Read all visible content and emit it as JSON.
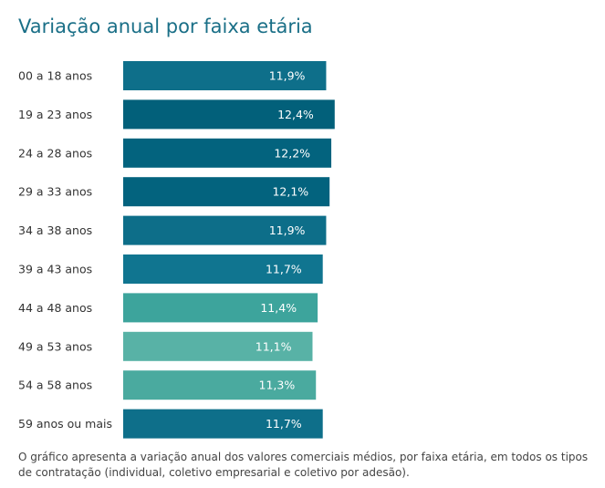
{
  "chart_data": {
    "type": "bar",
    "orientation": "horizontal",
    "title": "Variação anual por faixa etária",
    "categories": [
      "00 a 18 anos",
      "19 a 23 anos",
      "24 a 28 anos",
      "29 a 33 anos",
      "34 a 38 anos",
      "39 a 43 anos",
      "44 a 48 anos",
      "49 a 53 anos",
      "54 a 58 anos",
      "59 anos ou mais"
    ],
    "values": [
      11.9,
      12.4,
      12.2,
      12.1,
      11.9,
      11.7,
      11.4,
      11.1,
      11.3,
      11.7
    ],
    "value_labels": [
      "11,9%",
      "12,4%",
      "12,2%",
      "12,1%",
      "11,9%",
      "11,7%",
      "11,4%",
      "11,1%",
      "11,3%",
      "11,7%"
    ],
    "colors": [
      "#0e6f8a",
      "#02607a",
      "#03637e",
      "#03637e",
      "#0d6e89",
      "#107590",
      "#3da49c",
      "#58b2a6",
      "#4aaa9f",
      "#0e6f8a"
    ],
    "xlim": [
      0,
      13
    ],
    "footnote": "O gráfico apresenta a variação anual dos valores comerciais médios, por faixa etária, em todos os tipos de contratação (individual, coletivo empresarial e coletivo por adesão)."
  }
}
